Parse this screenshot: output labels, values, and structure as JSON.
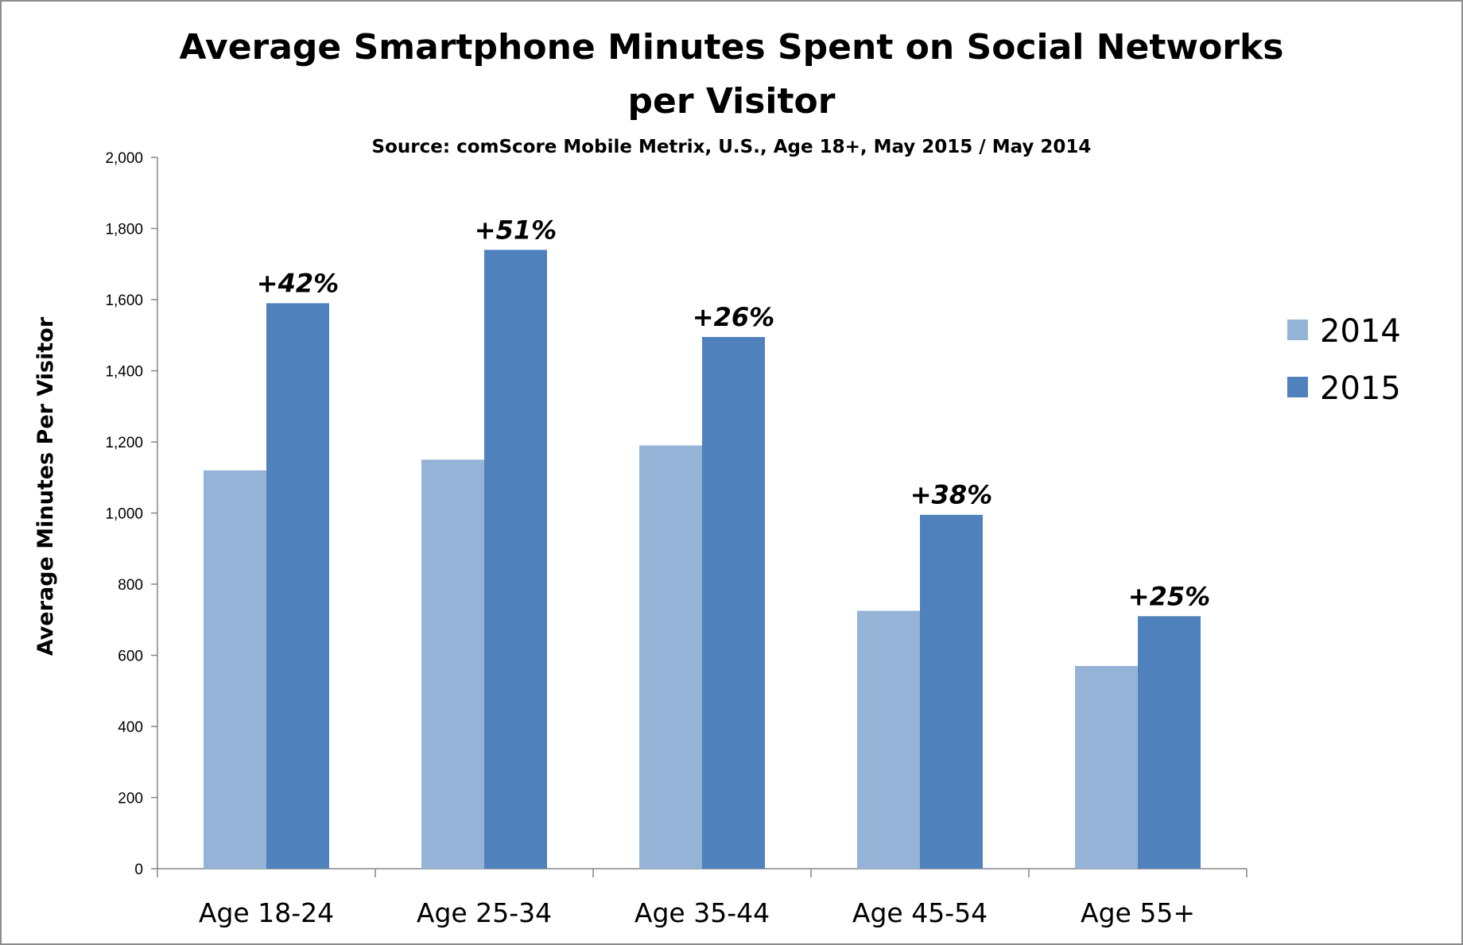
{
  "chart_data": {
    "type": "bar",
    "title_line1": "Average Smartphone Minutes Spent on Social Networks",
    "title_line2": "per Visitor",
    "subtitle": "Source: comScore Mobile Metrix, U.S., Age 18+, May 2015 / May 2014",
    "ylabel": "Average Minutes Per Visitor",
    "xlabel": "",
    "ylim": [
      0,
      2000
    ],
    "ytick_values": [
      0,
      200,
      400,
      600,
      800,
      1000,
      1200,
      1400,
      1600,
      1800,
      2000
    ],
    "ytick_labels": [
      "0",
      "200",
      "400",
      "600",
      "800",
      "1,000",
      "1,200",
      "1,400",
      "1,600",
      "1,800",
      "2,000"
    ],
    "categories": [
      "Age 18-24",
      "Age 25-34",
      "Age 35-44",
      "Age 45-54",
      "Age 55+"
    ],
    "series": [
      {
        "name": "2014",
        "color": "#95b3d7",
        "values": [
          1120,
          1150,
          1190,
          725,
          570
        ]
      },
      {
        "name": "2015",
        "color": "#4f81bd",
        "values": [
          1590,
          1740,
          1495,
          995,
          710
        ]
      }
    ],
    "data_labels": [
      "+42%",
      "+51%",
      "+26%",
      "+38%",
      "+25%"
    ],
    "legend_position": "right",
    "grid": false
  }
}
